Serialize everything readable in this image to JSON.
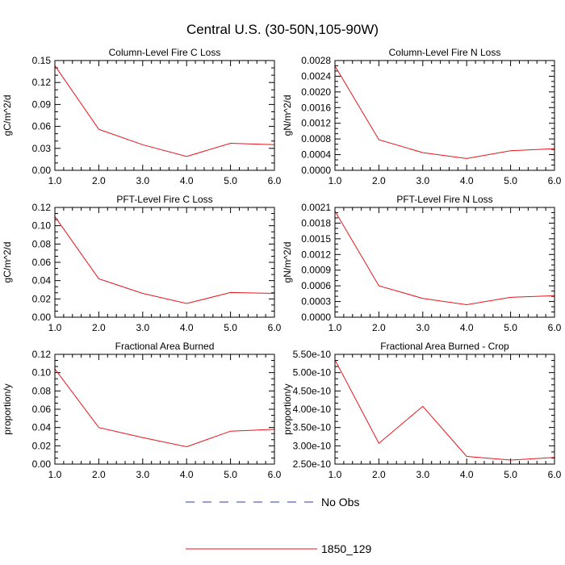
{
  "figure_title": "Central U.S. (30-50N,105-90W)",
  "colors": {
    "series": "#e8141c",
    "no_obs": "#3a3aa8",
    "frame": "#000000"
  },
  "legend": [
    {
      "label": "No Obs",
      "style": "dashed",
      "color": "#3a3aa8"
    },
    {
      "label": "1850_129",
      "style": "solid",
      "color": "#e8141c"
    }
  ],
  "chart_data": [
    {
      "type": "line",
      "title": "Column-Level Fire C Loss",
      "ylabel": "gC/m^2/d",
      "x": [
        1.0,
        2.0,
        3.0,
        4.0,
        5.0,
        6.0
      ],
      "xticks": [
        "1.0",
        "2.0",
        "3.0",
        "4.0",
        "5.0",
        "6.0"
      ],
      "xlim": [
        1.0,
        6.0
      ],
      "ylim": [
        0,
        0.15
      ],
      "yticks": [
        0,
        0.03,
        0.06,
        0.09,
        0.12,
        0.15
      ],
      "ytick_labels": [
        "0.00",
        "0.03",
        "0.06",
        "0.09",
        "0.12",
        "0.15"
      ],
      "series": [
        {
          "name": "1850_129",
          "values": [
            0.143,
            0.056,
            0.035,
            0.019,
            0.037,
            0.035
          ]
        }
      ]
    },
    {
      "type": "line",
      "title": "Column-Level Fire N Loss",
      "ylabel": "gN/m^2/d",
      "x": [
        1.0,
        2.0,
        3.0,
        4.0,
        5.0,
        6.0
      ],
      "xticks": [
        "1.0",
        "2.0",
        "3.0",
        "4.0",
        "5.0",
        "6.0"
      ],
      "xlim": [
        1.0,
        6.0
      ],
      "ylim": [
        0,
        0.0028
      ],
      "yticks": [
        0,
        0.0004,
        0.0008,
        0.0012,
        0.0016,
        0.002,
        0.0024,
        0.0028
      ],
      "ytick_labels": [
        "0.0000",
        "0.0004",
        "0.0008",
        "0.0012",
        "0.0016",
        "0.0020",
        "0.0024",
        "0.0028"
      ],
      "series": [
        {
          "name": "1850_129",
          "values": [
            0.00266,
            0.00078,
            0.00045,
            0.0003,
            0.0005,
            0.00055
          ]
        }
      ]
    },
    {
      "type": "line",
      "title": "PFT-Level Fire C Loss",
      "ylabel": "gC/m^2/d",
      "x": [
        1.0,
        2.0,
        3.0,
        4.0,
        5.0,
        6.0
      ],
      "xticks": [
        "1.0",
        "2.0",
        "3.0",
        "4.0",
        "5.0",
        "6.0"
      ],
      "xlim": [
        1.0,
        6.0
      ],
      "ylim": [
        0,
        0.12
      ],
      "yticks": [
        0,
        0.02,
        0.04,
        0.06,
        0.08,
        0.1,
        0.12
      ],
      "ytick_labels": [
        "0.00",
        "0.02",
        "0.04",
        "0.06",
        "0.08",
        "0.10",
        "0.12"
      ],
      "series": [
        {
          "name": "1850_129",
          "values": [
            0.11,
            0.042,
            0.026,
            0.015,
            0.027,
            0.026
          ]
        }
      ]
    },
    {
      "type": "line",
      "title": "PFT-Level Fire N Loss",
      "ylabel": "gN/m^2/d",
      "x": [
        1.0,
        2.0,
        3.0,
        4.0,
        5.0,
        6.0
      ],
      "xticks": [
        "1.0",
        "2.0",
        "3.0",
        "4.0",
        "5.0",
        "6.0"
      ],
      "xlim": [
        1.0,
        6.0
      ],
      "ylim": [
        0,
        0.0021
      ],
      "yticks": [
        0,
        0.0003,
        0.0006,
        0.0009,
        0.0012,
        0.0015,
        0.0018,
        0.0021
      ],
      "ytick_labels": [
        "0.0000",
        "0.0003",
        "0.0006",
        "0.0009",
        "0.0012",
        "0.0015",
        "0.0018",
        "0.0021"
      ],
      "series": [
        {
          "name": "1850_129",
          "values": [
            0.00203,
            0.0006,
            0.00036,
            0.00024,
            0.00038,
            0.00041
          ]
        }
      ]
    },
    {
      "type": "line",
      "title": "Fractional Area Burned",
      "ylabel": "proportion/y",
      "x": [
        1.0,
        2.0,
        3.0,
        4.0,
        5.0,
        6.0
      ],
      "xticks": [
        "1.0",
        "2.0",
        "3.0",
        "4.0",
        "5.0",
        "6.0"
      ],
      "xlim": [
        1.0,
        6.0
      ],
      "ylim": [
        0,
        0.12
      ],
      "yticks": [
        0,
        0.02,
        0.04,
        0.06,
        0.08,
        0.1,
        0.12
      ],
      "ytick_labels": [
        "0.00",
        "0.02",
        "0.04",
        "0.06",
        "0.08",
        "0.10",
        "0.12"
      ],
      "series": [
        {
          "name": "1850_129",
          "values": [
            0.104,
            0.04,
            0.029,
            0.019,
            0.036,
            0.038
          ]
        }
      ]
    },
    {
      "type": "line",
      "title": "Fractional Area Burned - Crop",
      "ylabel": "proportion/y",
      "x": [
        1.0,
        2.0,
        3.0,
        4.0,
        5.0,
        6.0
      ],
      "xticks": [
        "1.0",
        "2.0",
        "3.0",
        "4.0",
        "5.0",
        "6.0"
      ],
      "xlim": [
        1.0,
        6.0
      ],
      "ylim": [
        2.5e-10,
        5.5e-10
      ],
      "yticks": [
        2.5e-10,
        3e-10,
        3.5e-10,
        4e-10,
        4.5e-10,
        5e-10,
        5.5e-10
      ],
      "ytick_labels": [
        "2.50e-10",
        "3.00e-10",
        "3.50e-10",
        "4.00e-10",
        "4.50e-10",
        "5.00e-10",
        "5.50e-10"
      ],
      "series": [
        {
          "name": "1850_129",
          "values": [
            5.35e-10,
            3.07e-10,
            4.08e-10,
            2.71e-10,
            2.61e-10,
            2.68e-10
          ]
        }
      ]
    }
  ]
}
